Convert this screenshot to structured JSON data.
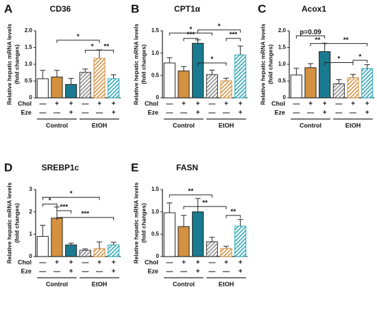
{
  "chart_data": [
    {
      "type": "bar",
      "letter": "A",
      "title": "CD36",
      "y_label": [
        "Relative hepatic mRNA levels",
        "(fold changes)"
      ],
      "categories": [
        null,
        null,
        null,
        null,
        null,
        null
      ],
      "values": [
        0.57,
        0.62,
        0.4,
        0.76,
        1.18,
        0.57
      ],
      "errors": [
        0.25,
        0.2,
        0.18,
        0.1,
        0.25,
        0.12
      ],
      "colors": [
        "#ffffff",
        "#d4913f",
        "#1a7a8f",
        "#8a8a8a",
        "#d4913f",
        "#2aa7b5"
      ],
      "hatched": [
        false,
        false,
        false,
        true,
        true,
        true
      ],
      "ylim": [
        0,
        2
      ],
      "yticks": [
        0,
        0.5,
        {
          "value": 1,
          "label": "1.0"
        },
        1.5,
        {
          "value": 2,
          "label": "2.0"
        }
      ],
      "row_labels": [
        "Chol",
        "Eze"
      ],
      "chol": [
        "—",
        "+",
        "+",
        "—",
        "+",
        "+"
      ],
      "eze": [
        "—",
        "—",
        "+",
        "—",
        "—",
        "+"
      ],
      "groups": [
        "Control",
        "EtOH"
      ],
      "annotations": [
        "*",
        "*",
        "**"
      ]
    },
    {
      "type": "bar",
      "letter": "B",
      "title": "CPT1α",
      "y_label": [
        "Relative hepatic mRNA levels",
        "(fold changes)"
      ],
      "categories": [
        null,
        null,
        null,
        null,
        null,
        null
      ],
      "values": [
        0.78,
        0.6,
        1.22,
        0.52,
        0.38,
        0.96
      ],
      "errors": [
        0.12,
        0.1,
        0.08,
        0.1,
        0.06,
        0.2
      ],
      "colors": [
        "#ffffff",
        "#d4913f",
        "#1a7a8f",
        "#8a8a8a",
        "#d4913f",
        "#2aa7b5"
      ],
      "hatched": [
        false,
        false,
        false,
        true,
        true,
        true
      ],
      "ylim": [
        0,
        1.5
      ],
      "yticks": [
        0,
        0.5,
        {
          "value": 1,
          "label": "1.0"
        },
        1.5
      ],
      "row_labels": [
        "Chol",
        "Eze"
      ],
      "chol": [
        "—",
        "+",
        "+",
        "—",
        "+",
        "+"
      ],
      "eze": [
        "—",
        "—",
        "+",
        "—",
        "—",
        "+"
      ],
      "groups": [
        "Control",
        "EtOH"
      ],
      "annotations": [
        "*",
        "*",
        "***",
        "***",
        "*"
      ]
    },
    {
      "type": "bar",
      "letter": "C",
      "title": "Acox1",
      "y_label": [
        "Relative hepatic mRNA levels",
        "(fold changes)"
      ],
      "categories": [
        null,
        null,
        null,
        null,
        null,
        null
      ],
      "values": [
        0.68,
        0.9,
        1.38,
        0.42,
        0.6,
        0.87
      ],
      "errors": [
        0.2,
        0.12,
        0.25,
        0.12,
        0.1,
        0.12
      ],
      "colors": [
        "#ffffff",
        "#d4913f",
        "#1a7a8f",
        "#8a8a8a",
        "#d4913f",
        "#2aa7b5"
      ],
      "hatched": [
        false,
        false,
        false,
        true,
        true,
        true
      ],
      "ylim": [
        0,
        2
      ],
      "yticks": [
        0,
        0.5,
        {
          "value": 1,
          "label": "1.0"
        },
        1.5,
        {
          "value": 2,
          "label": "2.0"
        }
      ],
      "row_labels": [
        "Chol",
        "Eze"
      ],
      "chol": [
        "—",
        "+",
        "+",
        "—",
        "+",
        "+"
      ],
      "eze": [
        "—",
        "—",
        "+",
        "—",
        "—",
        "+"
      ],
      "groups": [
        "Control",
        "EtOH"
      ],
      "annotations": [
        "p=0.09",
        "**",
        "**",
        "*",
        "*"
      ]
    },
    {
      "type": "bar",
      "letter": "D",
      "title": "SREBP1c",
      "y_label": [
        "Relative hepatic mRNA levels",
        "(fold changes)"
      ],
      "categories": [
        null,
        null,
        null,
        null,
        null,
        null
      ],
      "values": [
        0.9,
        1.72,
        0.52,
        0.28,
        0.35,
        0.52
      ],
      "errors": [
        0.5,
        0.5,
        0.08,
        0.06,
        0.3,
        0.12
      ],
      "colors": [
        "#ffffff",
        "#d4913f",
        "#1a7a8f",
        "#8a8a8a",
        "#d4913f",
        "#2aa7b5"
      ],
      "hatched": [
        false,
        false,
        false,
        true,
        true,
        true
      ],
      "ylim": [
        0,
        3
      ],
      "yticks": [
        0,
        1,
        2,
        3
      ],
      "row_labels": [
        "Chol",
        "Eze"
      ],
      "chol": [
        "—",
        "+",
        "+",
        "—",
        "+",
        "+"
      ],
      "eze": [
        "—",
        "—",
        "+",
        "—",
        "—",
        "+"
      ],
      "groups": [
        "Control",
        "EtOH"
      ],
      "annotations": [
        "*",
        "*",
        "***",
        "***"
      ]
    },
    {
      "type": "bar",
      "letter": "E",
      "title": "FASN",
      "y_label": [
        "Relative hepatic mRNA levels",
        "(fold changes)"
      ],
      "categories": [
        null,
        null,
        null,
        null,
        null,
        null
      ],
      "values": [
        0.98,
        0.67,
        1.0,
        0.33,
        0.18,
        0.68
      ],
      "errors": [
        0.22,
        0.25,
        0.3,
        0.1,
        0.05,
        0.15
      ],
      "colors": [
        "#ffffff",
        "#d4913f",
        "#1a7a8f",
        "#8a8a8a",
        "#d4913f",
        "#2aa7b5"
      ],
      "hatched": [
        false,
        false,
        false,
        true,
        true,
        true
      ],
      "ylim": [
        0,
        1.5
      ],
      "yticks": [
        0,
        0.5,
        {
          "value": 1,
          "label": "1.0"
        },
        1.5
      ],
      "row_labels": [
        "Chol",
        "Eze"
      ],
      "chol": [
        "—",
        "+",
        "+",
        "—",
        "+",
        "+"
      ],
      "eze": [
        "—",
        "—",
        "+",
        "—",
        "—",
        "+"
      ],
      "groups": [
        "Control",
        "EtOH"
      ],
      "annotations": [
        "**",
        "**",
        "**"
      ]
    }
  ]
}
